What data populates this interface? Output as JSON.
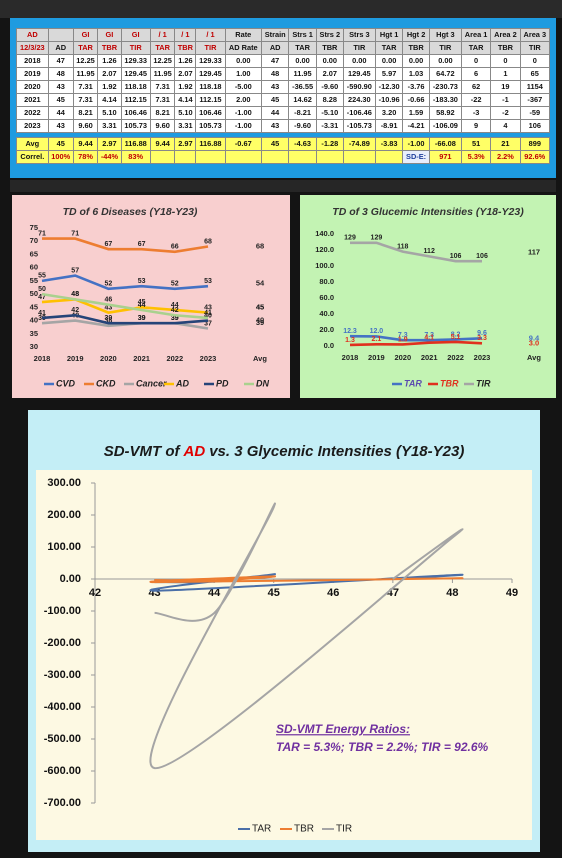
{
  "table": {
    "header": [
      [
        "AD",
        null,
        "GI",
        "GI",
        "GI",
        "/ 1",
        "/ 1",
        "/ 1",
        "Rate",
        "Strain",
        "Strs 1",
        "Strs 2",
        "Strs 3",
        "Hgt 1",
        "Hgt 2",
        "Hgt 3",
        "Area 1",
        "Area 2",
        "Area 3"
      ],
      [
        "12/3/23",
        "AD",
        "TAR",
        "TBR",
        "TIR",
        "TAR",
        "TBR",
        "TIR",
        "AD Rate",
        "AD",
        "TAR",
        "TBR",
        "TIR",
        "TAR",
        "TBR",
        "TIR",
        "TAR",
        "TBR",
        "TIR"
      ]
    ],
    "rows": [
      [
        "2018",
        "47",
        "12.25",
        "1.26",
        "129.33",
        "12.25",
        "1.26",
        "129.33",
        "0.00",
        "47",
        "0.00",
        "0.00",
        "0.00",
        "0.00",
        "0.00",
        "0.00",
        "0",
        "0",
        "0"
      ],
      [
        "2019",
        "48",
        "11.95",
        "2.07",
        "129.45",
        "11.95",
        "2.07",
        "129.45",
        "1.00",
        "48",
        "11.95",
        "2.07",
        "129.45",
        "5.97",
        "1.03",
        "64.72",
        "6",
        "1",
        "65"
      ],
      [
        "2020",
        "43",
        "7.31",
        "1.92",
        "118.18",
        "7.31",
        "1.92",
        "118.18",
        "-5.00",
        "43",
        "-36.55",
        "-9.60",
        "-590.90",
        "-12.30",
        "-3.76",
        "-230.73",
        "62",
        "19",
        "1154"
      ],
      [
        "2021",
        "45",
        "7.31",
        "4.14",
        "112.15",
        "7.31",
        "4.14",
        "112.15",
        "2.00",
        "45",
        "14.62",
        "8.28",
        "224.30",
        "-10.96",
        "-0.66",
        "-183.30",
        "-22",
        "-1",
        "-367"
      ],
      [
        "2022",
        "44",
        "8.21",
        "5.10",
        "106.46",
        "8.21",
        "5.10",
        "106.46",
        "-1.00",
        "44",
        "-8.21",
        "-5.10",
        "-106.46",
        "3.20",
        "1.59",
        "58.92",
        "-3",
        "-2",
        "-59"
      ],
      [
        "2023",
        "43",
        "9.60",
        "3.31",
        "105.73",
        "9.60",
        "3.31",
        "105.73",
        "-1.00",
        "43",
        "-9.60",
        "-3.31",
        "-105.73",
        "-8.91",
        "-4.21",
        "-106.09",
        "9",
        "4",
        "106"
      ]
    ],
    "avg": [
      "Avg",
      "45",
      "9.44",
      "2.97",
      "116.88",
      "9.44",
      "2.97",
      "116.88",
      "-0.67",
      "45",
      "-4.63",
      "-1.28",
      "-74.89",
      "-3.83",
      "-1.00",
      "-66.08",
      "51",
      "21",
      "899"
    ],
    "correl": [
      "Correl.",
      "100%",
      "78%",
      "-44%",
      "83%",
      null,
      null,
      null,
      null,
      null,
      null,
      null,
      null,
      null,
      "SD-E:",
      "971",
      "5.3%",
      "2.2%",
      "92.6%"
    ]
  },
  "chart_data": [
    {
      "type": "line",
      "title": "TD of 6 Diseases  (Y18-Y23)",
      "categories": [
        "2018",
        "2019",
        "2020",
        "2021",
        "2022",
        "2023"
      ],
      "avg_label": "Avg",
      "series": [
        {
          "name": "CVD",
          "color": "#4472c4",
          "values": [
            55,
            57,
            52,
            53,
            52,
            53
          ],
          "avg": 54
        },
        {
          "name": "CKD",
          "color": "#ed7d31",
          "values": [
            71,
            71,
            67,
            67,
            66,
            68
          ],
          "avg": 68
        },
        {
          "name": "Cancer",
          "color": "#a5a5a5",
          "values": [
            39,
            40,
            38,
            39,
            39,
            37
          ],
          "avg": 39
        },
        {
          "name": "AD",
          "color": "#ffc000",
          "values": [
            47,
            48,
            43,
            45,
            44,
            43
          ],
          "avg": 45
        },
        {
          "name": "PD",
          "color": "#264478",
          "values": [
            41,
            42,
            39,
            39,
            39,
            40
          ],
          "avg": 40
        },
        {
          "name": "DN",
          "color": "#a9d18e",
          "values": [
            50,
            48,
            46,
            44,
            42,
            41
          ],
          "avg": 45
        }
      ],
      "ylim": [
        30,
        75
      ],
      "yticks": [
        30,
        35,
        40,
        45,
        50,
        55,
        60,
        65,
        70,
        75
      ],
      "grid": false,
      "legend": "bottom"
    },
    {
      "type": "line",
      "title": "TD of 3 Glucemic Intensities  (Y18-Y23)",
      "categories": [
        "2018",
        "2019",
        "2020",
        "2021",
        "2022",
        "2023"
      ],
      "avg_label": "Avg",
      "series": [
        {
          "name": "TAR",
          "color": "#4472c4",
          "values": [
            12.3,
            12.0,
            7.3,
            7.3,
            8.2,
            9.6
          ],
          "value_labels": [
            "12.3",
            "12.0",
            "7.3",
            "7.3",
            "8.2",
            "9.6"
          ],
          "avg": 9.4
        },
        {
          "name": "TBR",
          "color": "#e0301e",
          "values": [
            1.3,
            2.1,
            1.9,
            4.1,
            5.1,
            3.3
          ],
          "avg": 3.0,
          "avg_text": "3.0"
        },
        {
          "name": "TIR",
          "color": "#a5a5a5",
          "values": [
            129,
            129,
            118,
            112,
            106,
            106
          ],
          "avg": 117
        }
      ],
      "ylim": [
        0,
        140
      ],
      "yticks": [
        {
          "value": 0,
          "label": "0.0"
        },
        {
          "value": 20,
          "label": "20.0"
        },
        {
          "value": 40,
          "label": "40.0"
        },
        {
          "value": 60,
          "label": "60.0"
        },
        {
          "value": 80,
          "label": "80.0"
        },
        {
          "value": 100,
          "label": "100.0"
        },
        {
          "value": 120,
          "label": "120.0"
        },
        {
          "value": 140,
          "label": "140.0"
        }
      ],
      "grid": false,
      "legend": "bottom"
    },
    {
      "type": "scatter",
      "title": [
        "SD-VMT of",
        "AD",
        "vs. 3 Glycemic Intensities  (Y18-Y23)"
      ],
      "x": [
        47,
        48,
        43,
        45,
        44,
        43
      ],
      "series": [
        {
          "name": "TAR",
          "color": "#4a6fa8",
          "values": [
            0,
            11.95,
            -36.55,
            14.62,
            -8.21,
            -9.6
          ]
        },
        {
          "name": "TBR",
          "color": "#ed7d31",
          "values": [
            0,
            2.07,
            -9.6,
            8.28,
            -5.1,
            -3.31
          ]
        },
        {
          "name": "TIR",
          "color": "#a5a5a5",
          "values": [
            0,
            129.45,
            -590.9,
            224.3,
            -106.46,
            -105.73
          ]
        }
      ],
      "smooth": true,
      "xlim": [
        42,
        49
      ],
      "xticks": [
        42,
        43,
        44,
        45,
        46,
        47,
        48,
        49
      ],
      "ylim": [
        -700,
        300
      ],
      "yticks": [
        {
          "value": -700,
          "label": "-700.00"
        },
        {
          "value": -600,
          "label": "-600.00"
        },
        {
          "value": -500,
          "label": "-500.00"
        },
        {
          "value": -400,
          "label": "-400.00"
        },
        {
          "value": -300,
          "label": "-300.00"
        },
        {
          "value": -200,
          "label": "-200.00"
        },
        {
          "value": -100,
          "label": "-100.00"
        },
        {
          "value": 0,
          "label": "0.00"
        },
        {
          "value": 100,
          "label": "100.00"
        },
        {
          "value": 200,
          "label": "200.00"
        },
        {
          "value": 300,
          "label": "300.00"
        }
      ],
      "annotations": [
        "SD-VMT Energy Ratios:",
        "TAR = 5.3%;  TBR = 2.2%;  TIR = 92.6%"
      ],
      "grid": false,
      "legend": "bottom"
    }
  ]
}
